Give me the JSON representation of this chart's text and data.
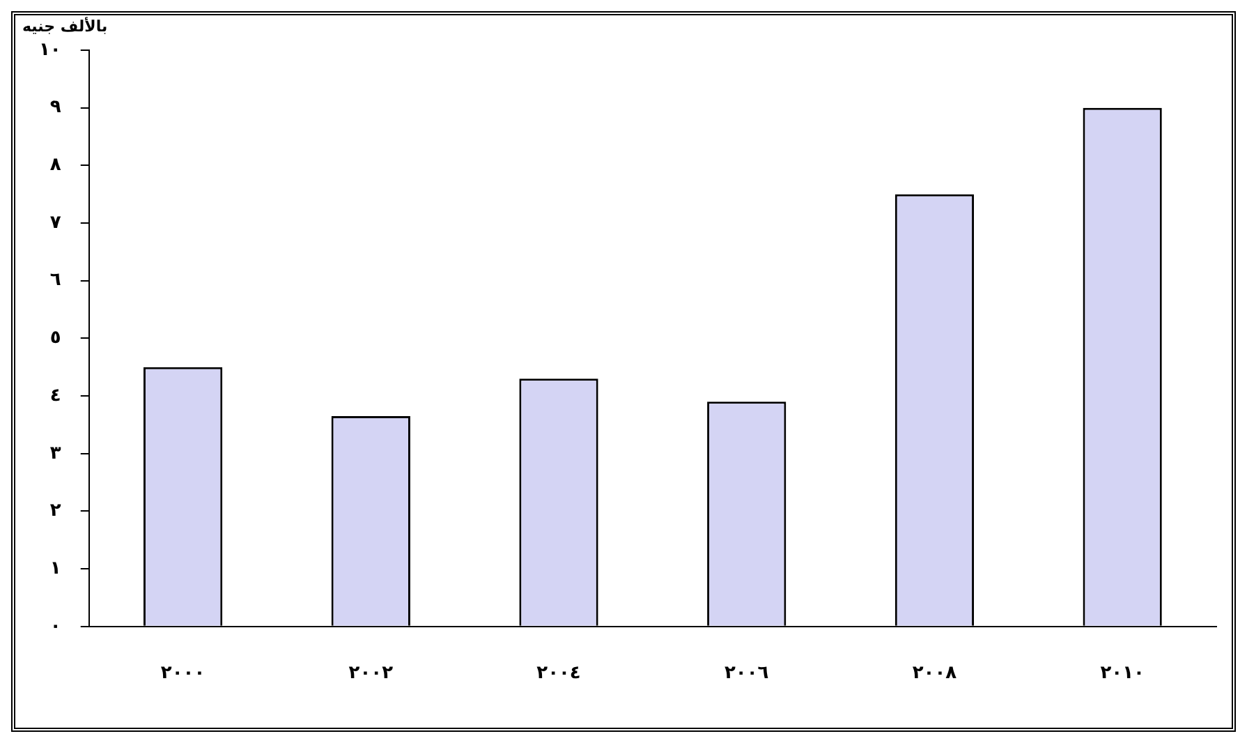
{
  "chart_data": {
    "type": "bar",
    "ylabel": "بالألف جنيه",
    "categories": [
      "٢٠٠٠",
      "٢٠٠٢",
      "٢٠٠٤",
      "٢٠٠٦",
      "٢٠٠٨",
      "٢٠١٠"
    ],
    "values": [
      4.5,
      3.65,
      4.3,
      3.9,
      7.5,
      9.0
    ],
    "color": "#d4d4f4",
    "ylim": [
      0,
      10
    ],
    "yticks": [
      {
        "value": 0,
        "label": "٠"
      },
      {
        "value": 1,
        "label": "١"
      },
      {
        "value": 2,
        "label": "٢"
      },
      {
        "value": 3,
        "label": "٣"
      },
      {
        "value": 4,
        "label": "٤"
      },
      {
        "value": 5,
        "label": "٥"
      },
      {
        "value": 6,
        "label": "٦"
      },
      {
        "value": 7,
        "label": "٧"
      },
      {
        "value": 8,
        "label": "٨"
      },
      {
        "value": 9,
        "label": "٩"
      },
      {
        "value": 10,
        "label": "١٠"
      }
    ],
    "grid": false,
    "legend": false
  }
}
